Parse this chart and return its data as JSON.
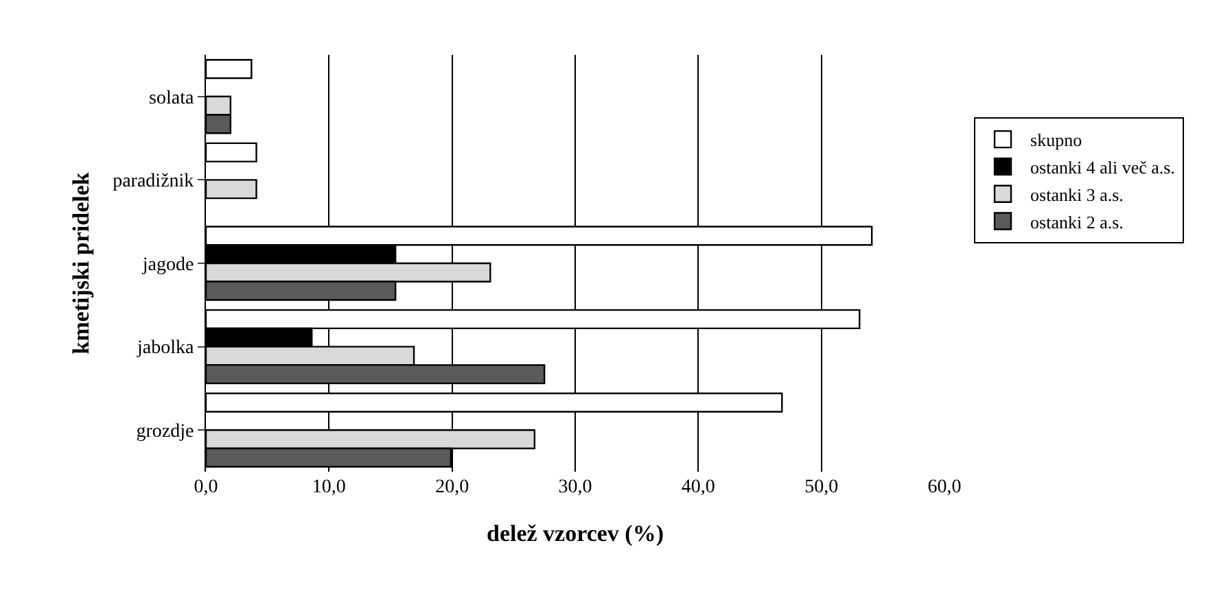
{
  "chart_data": {
    "type": "bar",
    "orientation": "horizontal",
    "xlabel": "delež vzorcev (%)",
    "ylabel": "kmetijski pridelek",
    "categories": [
      "solata",
      "paradižnik",
      "jagode",
      "jabolka",
      "grozdje"
    ],
    "series": [
      {
        "name": "skupno",
        "color": "#ffffff",
        "values": [
          3.7,
          4.1,
          54.1,
          53.1,
          46.8
        ]
      },
      {
        "name": "ostanki 4 ali več a.s.",
        "color": "#000000",
        "values": [
          null,
          null,
          15.4,
          8.6,
          null
        ]
      },
      {
        "name": "ostanki 3 a.s.",
        "color": "#d9d9d9",
        "values": [
          2.0,
          4.1,
          23.1,
          16.9,
          26.7
        ]
      },
      {
        "name": "ostanki 2 a.s.",
        "color": "#5a5a5a",
        "values": [
          2.0,
          null,
          15.4,
          27.5,
          19.9
        ]
      }
    ],
    "xlim": [
      0,
      60
    ],
    "xticks": [
      {
        "value": 0,
        "label": "0,0"
      },
      {
        "value": 10,
        "label": "10,0"
      },
      {
        "value": 20,
        "label": "20,0"
      },
      {
        "value": 30,
        "label": "30,0"
      },
      {
        "value": 40,
        "label": "40,0"
      },
      {
        "value": 50,
        "label": "50,0"
      },
      {
        "value": 60,
        "label": "60,0"
      }
    ],
    "grid": "x",
    "legend": "right"
  }
}
